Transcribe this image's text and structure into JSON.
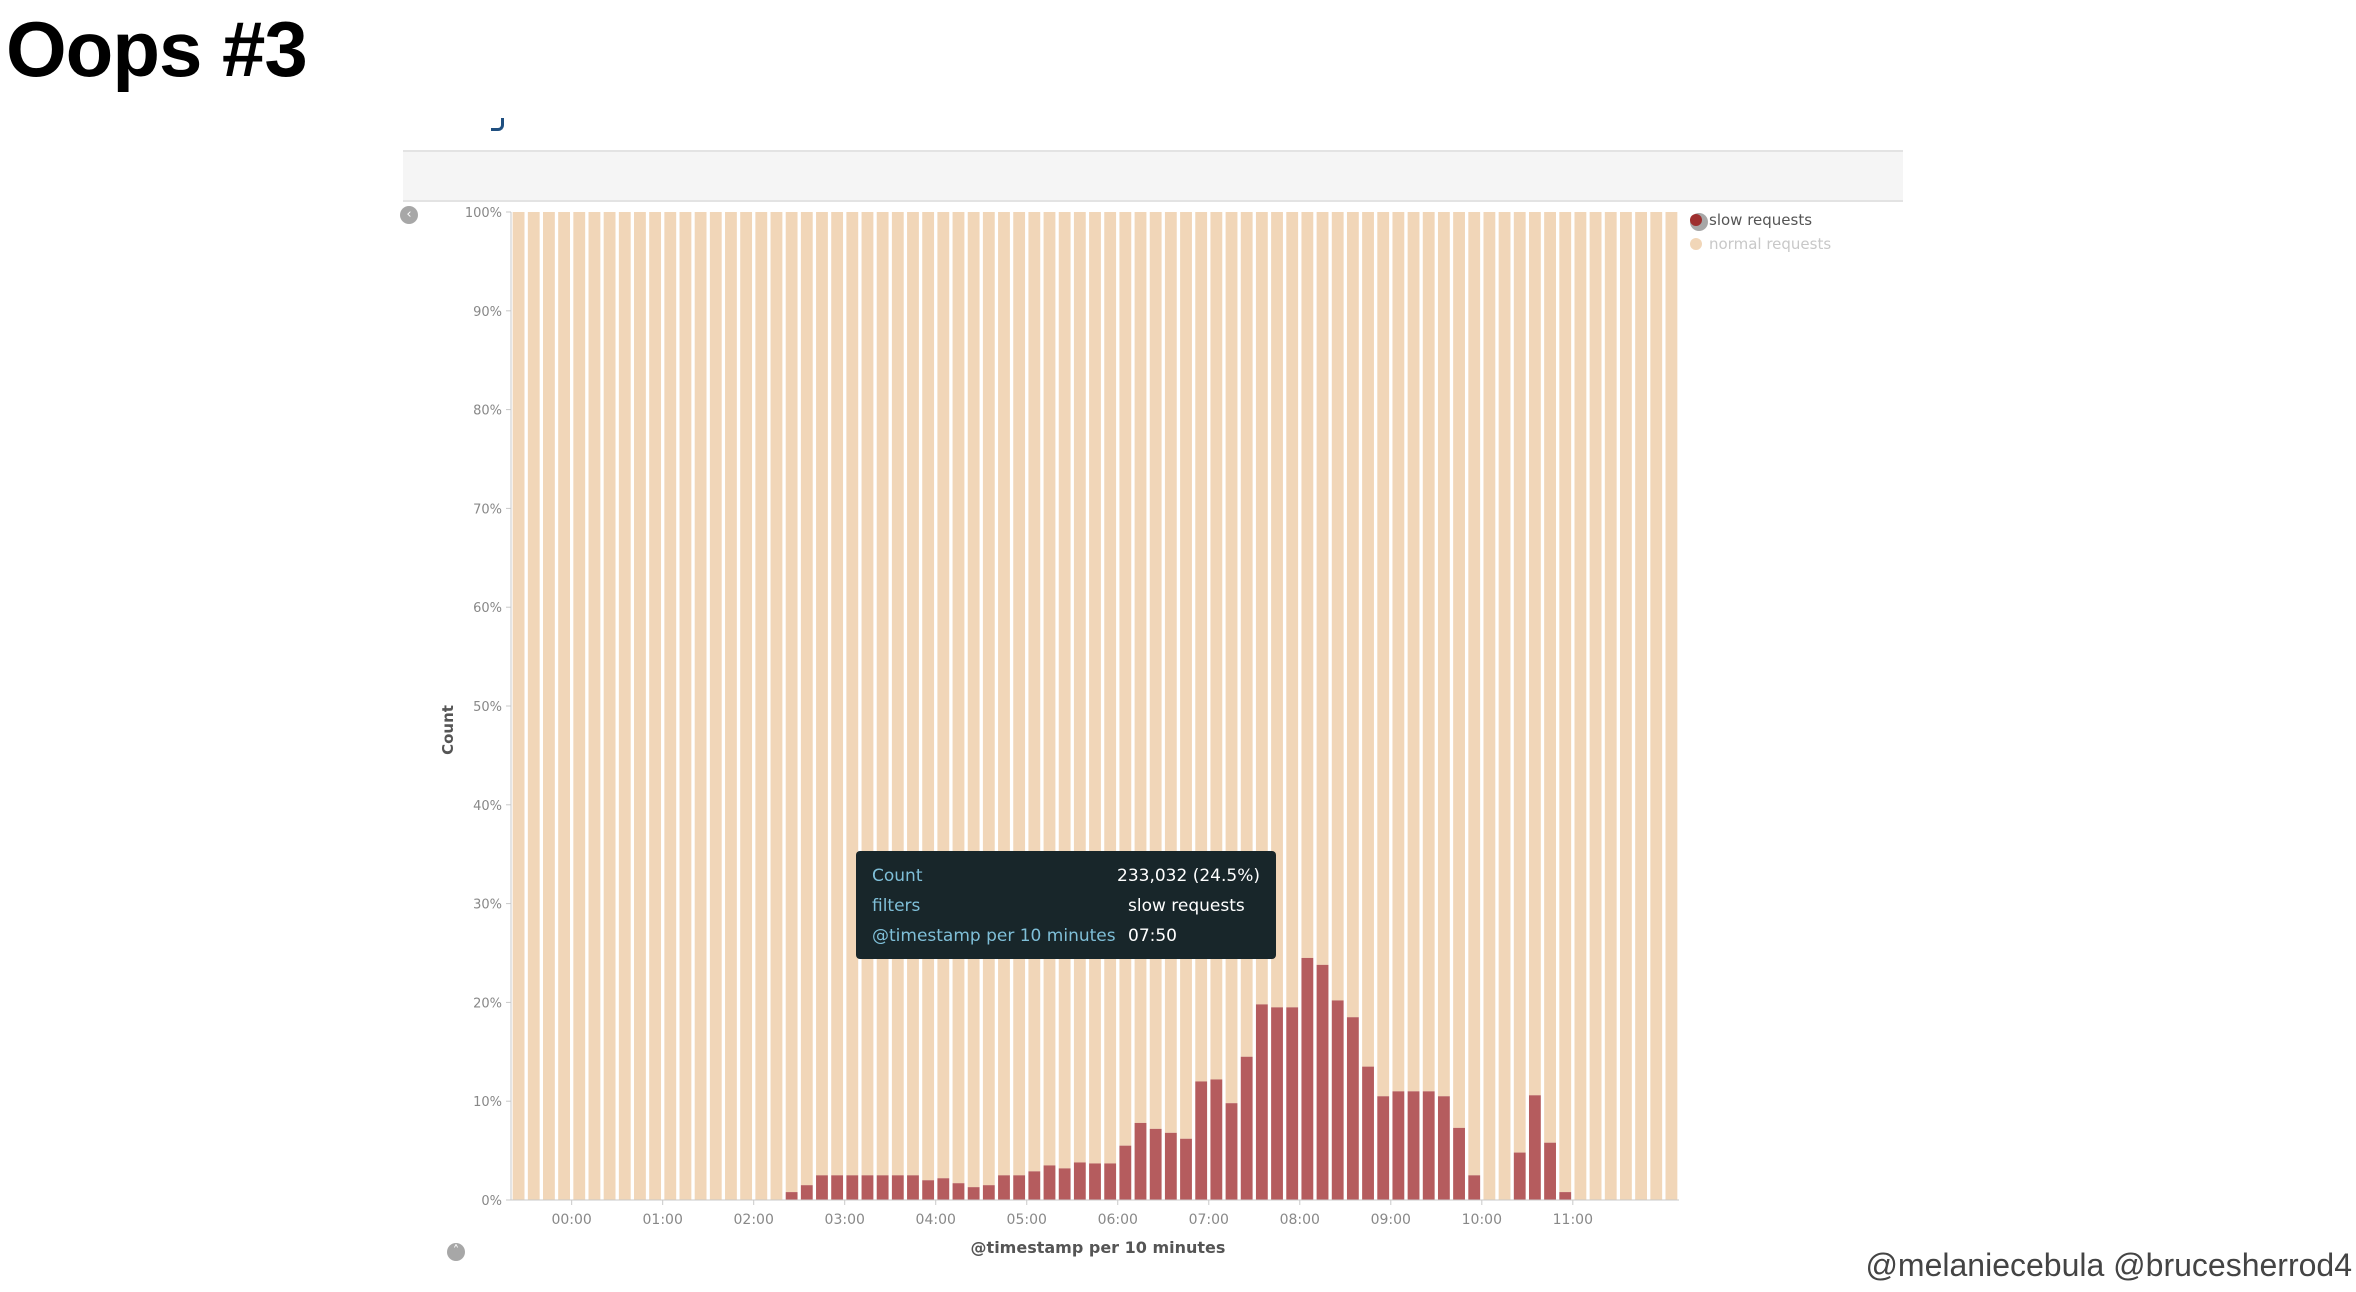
{
  "slide": {
    "title": "Oops #3",
    "handles": "@melaniecebula @brucesherrod4"
  },
  "legend": {
    "toggle_icon": "chevron-right-icon",
    "items": [
      {
        "label": "slow requests",
        "color": "#9e2f2f",
        "text_color": "#555555"
      },
      {
        "label": "normal requests",
        "color": "#f1d6b8",
        "text_color": "#c8c8c8"
      }
    ]
  },
  "icons": {
    "collapse_left": "chevron-left-icon",
    "collapse_bottom": "chevron-up-icon"
  },
  "tooltip": {
    "rows": [
      {
        "key": "Count",
        "value": "233,032 (24.5%)"
      },
      {
        "key": "filters",
        "value": "slow requests"
      },
      {
        "key": "@timestamp per 10 minutes",
        "value": "07:50"
      }
    ]
  },
  "chart_data": {
    "type": "bar",
    "stacked": true,
    "normalized": true,
    "xlabel": "@timestamp per 10 minutes",
    "ylabel": "Count",
    "ylim": [
      0,
      100
    ],
    "yticks": [
      "0%",
      "10%",
      "20%",
      "30%",
      "40%",
      "50%",
      "60%",
      "70%",
      "80%",
      "90%",
      "100%"
    ],
    "xticks": [
      "00:00",
      "01:00",
      "02:00",
      "03:00",
      "04:00",
      "05:00",
      "06:00",
      "07:00",
      "08:00",
      "09:00",
      "10:00",
      "11:00"
    ],
    "grid": false,
    "legend_position": "top-right",
    "bucket_count": 77,
    "series": [
      {
        "name": "slow requests",
        "color": "#b55c5e",
        "values": [
          0,
          0,
          0,
          0,
          0,
          0,
          0,
          0,
          0,
          0,
          0,
          0,
          0,
          0,
          0,
          0,
          0,
          0,
          0.8,
          1.5,
          2.5,
          2.5,
          2.5,
          2.5,
          2.5,
          2.5,
          2.5,
          2.0,
          2.2,
          1.7,
          1.3,
          1.5,
          2.5,
          2.5,
          2.9,
          3.5,
          3.2,
          3.8,
          3.7,
          3.7,
          5.5,
          7.8,
          7.2,
          6.8,
          6.2,
          12.0,
          12.2,
          9.8,
          14.5,
          19.8,
          19.5,
          19.5,
          24.5,
          23.8,
          20.2,
          18.5,
          13.5,
          10.5,
          11.0,
          11.0,
          11.0,
          10.5,
          7.3,
          2.5,
          0,
          0,
          4.8,
          10.6,
          5.8,
          0.8,
          0,
          0,
          0,
          0,
          0,
          0,
          0
        ]
      },
      {
        "name": "normal requests",
        "color": "#f1d6b8",
        "values": "remainder to 100%"
      }
    ]
  }
}
